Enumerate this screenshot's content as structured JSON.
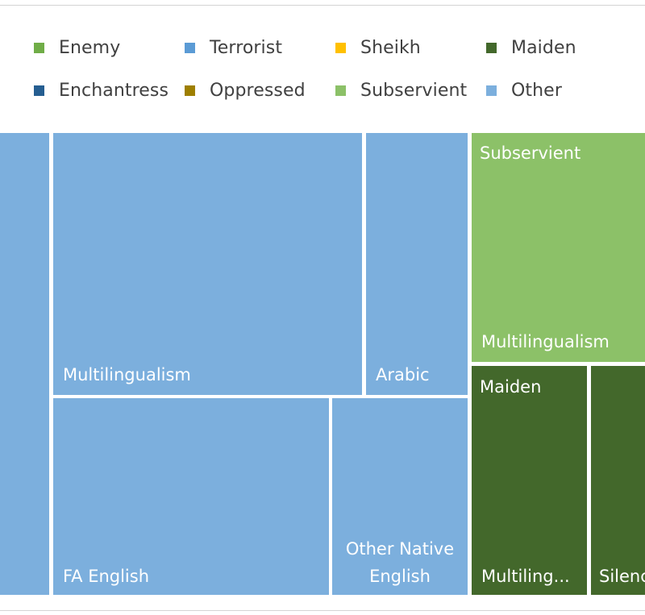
{
  "chart_data": {
    "type": "treemap",
    "legend": [
      {
        "label": "Enemy",
        "color": "#70ad47"
      },
      {
        "label": "Terrorist",
        "color": "#5b9bd5"
      },
      {
        "label": "Sheikh",
        "color": "#ffc000"
      },
      {
        "label": "Maiden",
        "color": "#43682b"
      },
      {
        "label": "Enchantress",
        "color": "#255e91"
      },
      {
        "label": "Oppressed",
        "color": "#9e7f00"
      },
      {
        "label": "Subservient",
        "color": "#8cc168"
      },
      {
        "label": "Other",
        "color": "#7cafdd"
      }
    ],
    "tiles": [
      {
        "group": "Other",
        "label": "",
        "color": "#7cafdd"
      },
      {
        "group": "Other",
        "label": "Multilingualism",
        "color": "#7cafdd"
      },
      {
        "group": "Other",
        "label": "Arabic",
        "color": "#7cafdd"
      },
      {
        "group": "Other",
        "label": "FA English",
        "color": "#7cafdd"
      },
      {
        "group": "Other",
        "label_lines": [
          "Other Native",
          "English"
        ],
        "color": "#7cafdd"
      },
      {
        "group": "Subservient",
        "header": "Subservient",
        "label": "Multilingualism",
        "color": "#8cc168"
      },
      {
        "group": "Maiden",
        "header": "Maiden",
        "label": "Multiling...",
        "color": "#43682b"
      },
      {
        "group": "Maiden",
        "label": "Silenc",
        "color": "#43682b"
      }
    ]
  }
}
